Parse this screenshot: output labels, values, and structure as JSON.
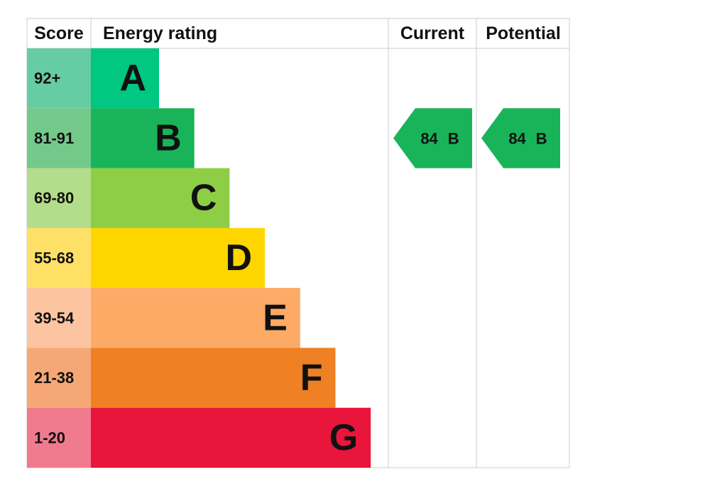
{
  "header": {
    "score": "Score",
    "rating": "Energy rating",
    "current": "Current",
    "potential": "Potential"
  },
  "bands": [
    {
      "score": "92+",
      "letter": "A",
      "color": "#00c781",
      "score_color": "#66cca4"
    },
    {
      "score": "81-91",
      "letter": "B",
      "color": "#19b459",
      "score_color": "#73c98a"
    },
    {
      "score": "69-80",
      "letter": "C",
      "color": "#8dce46",
      "score_color": "#b3dd8a"
    },
    {
      "score": "55-68",
      "letter": "D",
      "color": "#ffd500",
      "score_color": "#ffe066"
    },
    {
      "score": "39-54",
      "letter": "E",
      "color": "#fcaa65",
      "score_color": "#fcc4a0"
    },
    {
      "score": "21-38",
      "letter": "F",
      "color": "#ef8023",
      "score_color": "#f5a875"
    },
    {
      "score": "1-20",
      "letter": "G",
      "color": "#e9153b",
      "score_color": "#f07a8e"
    }
  ],
  "current": {
    "score": "84",
    "letter": "B"
  },
  "potential": {
    "score": "84",
    "letter": "B"
  }
}
